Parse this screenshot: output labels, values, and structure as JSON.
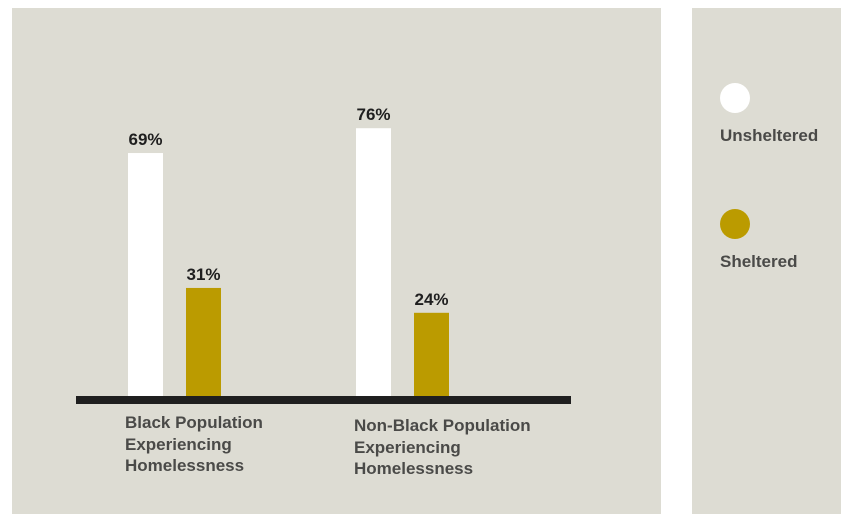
{
  "colors": {
    "background": "#dddcd3",
    "unsheltered": "#ffffff",
    "sheltered": "#bb9b00",
    "baseline": "#1f1f1f"
  },
  "legend": {
    "items": [
      {
        "label": "Unsheltered",
        "color": "#ffffff"
      },
      {
        "label": "Sheltered",
        "color": "#bb9b00"
      }
    ]
  },
  "chart_data": {
    "type": "bar",
    "categories": [
      [
        "Black Population",
        "Experiencing",
        "Homelessness"
      ],
      [
        "Non-Black Population",
        "Experiencing",
        "Homelessness"
      ]
    ],
    "series": [
      {
        "name": "Unsheltered",
        "values": [
          69,
          76
        ],
        "labels": [
          "69%",
          "76%"
        ],
        "color": "#ffffff"
      },
      {
        "name": "Sheltered",
        "values": [
          31,
          24
        ],
        "labels": [
          "31%",
          "24%"
        ],
        "color": "#bb9b00"
      }
    ],
    "ylim": [
      0,
      100
    ],
    "grid": false,
    "legend_position": "right"
  }
}
